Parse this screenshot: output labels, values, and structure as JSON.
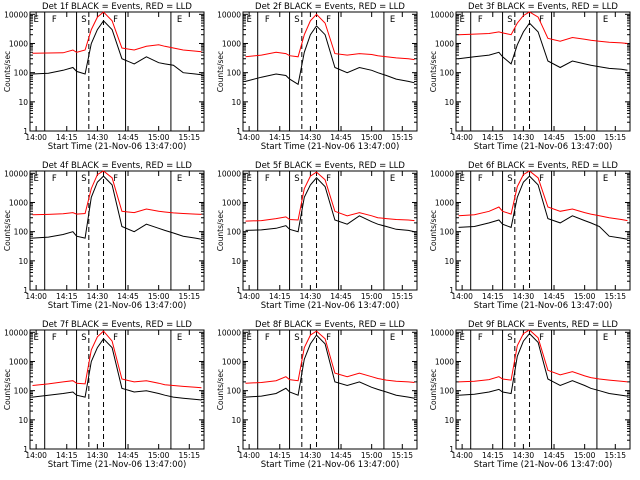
{
  "chart_data": {
    "type": "line",
    "grid": false,
    "ylabel": "Counts/sec",
    "xlabel": "Start Time (21-Nov-06 13:47:00)",
    "yscale": "log",
    "ylim": [
      1,
      12000
    ],
    "xlim": [
      13.95,
      15.37
    ],
    "xtick_labels": [
      "14:00",
      "14:15",
      "14:30",
      "14:45",
      "15:00",
      "15:15"
    ],
    "xtick_values": [
      14.0,
      14.25,
      14.5,
      14.75,
      15.0,
      15.25
    ],
    "ytick_labels": [
      "1",
      "10",
      "100",
      "1000",
      "10000"
    ],
    "ytick_values": [
      1,
      10,
      100,
      1000,
      10000
    ],
    "series_colors": {
      "events": "#000000",
      "lld": "#ff0000"
    },
    "panels": [
      {
        "title": "Det 1f BLACK = Events, RED = LLD",
        "zones": [
          "E",
          "F",
          "S",
          "F",
          "E"
        ],
        "x": [
          13.97,
          14.1,
          14.22,
          14.3,
          14.33,
          14.4,
          14.45,
          14.5,
          14.55,
          14.62,
          14.7,
          14.8,
          14.9,
          15.0,
          15.05,
          15.12,
          15.2,
          15.3,
          15.35
        ],
        "series": [
          {
            "values": [
              90,
              95,
              120,
              150,
              110,
              90,
              1000,
              3000,
              6000,
              3000,
              300,
              200,
              350,
              220,
              200,
              180,
              100,
              90,
              85
            ]
          },
          {
            "values": [
              460,
              470,
              480,
              600,
              500,
              600,
              3000,
              8000,
              12000,
              6000,
              700,
              600,
              800,
              900,
              800,
              700,
              600,
              550,
              520
            ]
          }
        ]
      },
      {
        "title": "Det 2f BLACK = Events, RED = LLD",
        "zones": [
          "E",
          "F",
          "S",
          "F",
          "E"
        ],
        "x": [
          13.97,
          14.1,
          14.22,
          14.3,
          14.33,
          14.4,
          14.45,
          14.5,
          14.55,
          14.62,
          14.7,
          14.8,
          14.9,
          15.0,
          15.05,
          15.12,
          15.2,
          15.3,
          15.35
        ],
        "series": [
          {
            "values": [
              50,
              70,
              90,
              80,
              60,
              40,
              500,
              2000,
              4000,
              2000,
              150,
              100,
              150,
              120,
              100,
              80,
              60,
              50,
              45
            ]
          },
          {
            "values": [
              350,
              400,
              500,
              450,
              380,
              350,
              2000,
              6000,
              10000,
              5000,
              450,
              400,
              450,
              420,
              380,
              350,
              320,
              300,
              280
            ]
          }
        ]
      },
      {
        "title": "Det 3f BLACK = Events, RED = LLD",
        "zones": [
          "E",
          "F",
          "S",
          "F",
          "E"
        ],
        "x": [
          13.97,
          14.1,
          14.22,
          14.3,
          14.33,
          14.4,
          14.45,
          14.5,
          14.55,
          14.62,
          14.7,
          14.8,
          14.9,
          15.0,
          15.05,
          15.12,
          15.2,
          15.3,
          15.35
        ],
        "series": [
          {
            "values": [
              300,
              350,
              400,
              500,
              350,
              200,
              900,
              2500,
              5000,
              2500,
              250,
              150,
              250,
              200,
              180,
              160,
              140,
              130,
              120
            ]
          },
          {
            "values": [
              2000,
              2100,
              2200,
              2500,
              2300,
              2000,
              5000,
              9000,
              12000,
              8000,
              1500,
              1200,
              1600,
              1400,
              1300,
              1200,
              1100,
              1050,
              1000
            ]
          }
        ]
      },
      {
        "title": "Det 4f BLACK = Events, RED = LLD",
        "zones": [
          "E",
          "F",
          "S",
          "F",
          "E"
        ],
        "x": [
          13.97,
          14.1,
          14.22,
          14.3,
          14.33,
          14.4,
          14.45,
          14.5,
          14.55,
          14.62,
          14.7,
          14.8,
          14.9,
          15.0,
          15.05,
          15.12,
          15.2,
          15.3,
          15.35
        ],
        "series": [
          {
            "values": [
              60,
              65,
              80,
              100,
              70,
              60,
              1500,
              5000,
              8000,
              4000,
              150,
              100,
              180,
              130,
              110,
              90,
              70,
              60,
              55
            ]
          },
          {
            "values": [
              380,
              390,
              410,
              450,
              400,
              420,
              3000,
              9000,
              12000,
              7000,
              500,
              450,
              600,
              500,
              470,
              440,
              420,
              400,
              390
            ]
          }
        ]
      },
      {
        "title": "Det 5f BLACK = Events, RED = LLD",
        "zones": [
          "E",
          "F",
          "S",
          "F",
          "E"
        ],
        "x": [
          13.97,
          14.1,
          14.22,
          14.3,
          14.33,
          14.4,
          14.45,
          14.5,
          14.55,
          14.62,
          14.7,
          14.8,
          14.9,
          15.0,
          15.05,
          15.12,
          15.2,
          15.3,
          15.35
        ],
        "series": [
          {
            "values": [
              110,
              115,
              130,
              160,
              120,
              100,
              1500,
              4000,
              7000,
              3500,
              250,
              180,
              350,
              220,
              180,
              150,
              120,
              110,
              100
            ]
          },
          {
            "values": [
              230,
              240,
              280,
              320,
              260,
              250,
              3000,
              8000,
              11000,
              6000,
              500,
              350,
              450,
              350,
              300,
              280,
              260,
              250,
              240
            ]
          }
        ]
      },
      {
        "title": "Det 6f BLACK = Events, RED = LLD",
        "zones": [
          "E",
          "F",
          "S",
          "F",
          "E"
        ],
        "x": [
          13.97,
          14.1,
          14.22,
          14.3,
          14.33,
          14.4,
          14.45,
          14.5,
          14.55,
          14.62,
          14.7,
          14.8,
          14.9,
          15.0,
          15.05,
          15.12,
          15.2,
          15.3,
          15.35
        ],
        "series": [
          {
            "values": [
              140,
              150,
              200,
              250,
              180,
              140,
              1500,
              5000,
              8000,
              4000,
              280,
              200,
              350,
              240,
              200,
              150,
              70,
              60,
              55
            ]
          },
          {
            "values": [
              350,
              380,
              500,
              700,
              500,
              400,
              3500,
              9000,
              12000,
              7000,
              700,
              500,
              600,
              450,
              400,
              350,
              300,
              260,
              240
            ]
          }
        ]
      },
      {
        "title": "Det 7f BLACK = Events, RED = LLD",
        "zones": [
          "E",
          "F",
          "S",
          "F",
          "E"
        ],
        "x": [
          13.97,
          14.1,
          14.22,
          14.3,
          14.33,
          14.4,
          14.45,
          14.5,
          14.55,
          14.62,
          14.7,
          14.8,
          14.9,
          15.0,
          15.05,
          15.12,
          15.2,
          15.3,
          15.35
        ],
        "series": [
          {
            "values": [
              60,
              70,
              80,
              90,
              70,
              60,
              1000,
              3000,
              6000,
              3000,
              120,
              90,
              100,
              80,
              70,
              60,
              55,
              50,
              48
            ]
          },
          {
            "values": [
              150,
              170,
              200,
              220,
              180,
              170,
              2500,
              7000,
              11000,
              5000,
              250,
              200,
              220,
              180,
              160,
              150,
              140,
              130,
              125
            ]
          }
        ]
      },
      {
        "title": "Det 8f BLACK = Events, RED = LLD",
        "zones": [
          "E",
          "F",
          "S",
          "F",
          "E"
        ],
        "x": [
          13.97,
          14.1,
          14.22,
          14.3,
          14.33,
          14.4,
          14.45,
          14.5,
          14.55,
          14.62,
          14.7,
          14.8,
          14.9,
          15.0,
          15.05,
          15.12,
          15.2,
          15.3,
          15.35
        ],
        "series": [
          {
            "values": [
              60,
              65,
              80,
              120,
              90,
              70,
              1200,
              4000,
              8000,
              4000,
              200,
              150,
              200,
              130,
              110,
              90,
              70,
              60,
              55
            ]
          },
          {
            "values": [
              180,
              190,
              220,
              300,
              240,
              220,
              3000,
              8000,
              11000,
              6000,
              400,
              300,
              400,
              300,
              260,
              230,
              210,
              200,
              190
            ]
          }
        ]
      },
      {
        "title": "Det 9f BLACK = Events, RED = LLD",
        "zones": [
          "E",
          "F",
          "S",
          "F",
          "E"
        ],
        "x": [
          13.97,
          14.1,
          14.22,
          14.3,
          14.33,
          14.4,
          14.45,
          14.5,
          14.55,
          14.62,
          14.7,
          14.8,
          14.9,
          15.0,
          15.05,
          15.12,
          15.2,
          15.3,
          15.35
        ],
        "series": [
          {
            "values": [
              70,
              75,
              90,
              110,
              90,
              80,
              1500,
              5000,
              9000,
              4500,
              250,
              150,
              220,
              150,
              120,
              100,
              80,
              70,
              65
            ]
          },
          {
            "values": [
              200,
              210,
              240,
              300,
              250,
              230,
              3500,
              9000,
              12000,
              6500,
              500,
              350,
              450,
              320,
              280,
              250,
              230,
              210,
              200
            ]
          }
        ]
      }
    ]
  }
}
